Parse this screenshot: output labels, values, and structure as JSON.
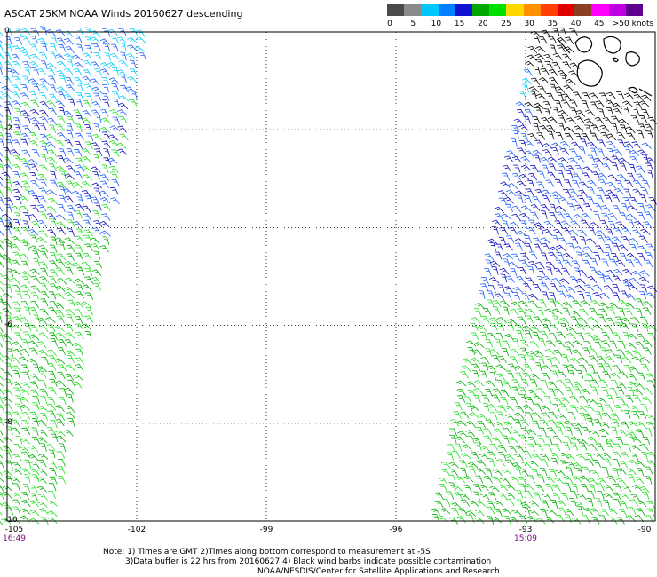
{
  "title": "ASCAT 25KM NOAA Winds 20160627 descending",
  "legend": {
    "colors": [
      "#4a4a4a",
      "#8a8a8a",
      "#00c8ff",
      "#0080ff",
      "#1010d0",
      "#00a800",
      "#00e000",
      "#ffd800",
      "#ff9000",
      "#ff4000",
      "#e00000",
      "#8a4020",
      "#ff00ff",
      "#c000e0",
      "#600090"
    ],
    "labels": [
      "0",
      "5",
      "10",
      "15",
      "20",
      "25",
      "30",
      "35",
      "40",
      "45",
      ">50 knots"
    ]
  },
  "map": {
    "lon_range": [
      -105,
      -90
    ],
    "lat_range": [
      -10,
      0
    ],
    "lat_labels": [
      "0",
      "-2",
      "-4",
      "-6",
      "-8",
      "-10"
    ],
    "lon_labels": [
      "-105",
      "-102",
      "-99",
      "-96",
      "-93",
      "-90"
    ],
    "times": [
      {
        "label": "16:49",
        "lon": -105
      },
      {
        "label": "15:09",
        "lon": -93
      }
    ],
    "coastline_note": "Galapagos Islands top-right",
    "wind_colors": {
      "contaminated": "#000000",
      "light": "#00d0ff",
      "moderate": "#2060ff",
      "strong": "#1010c0",
      "green": "#00b000",
      "lightgreen": "#20e020"
    }
  },
  "notes": [
    "Note: 1) Times are GMT 2)Times along bottom correspond to measurement at -5S",
    "3)Data buffer is 22 hrs from 20160627 4) Black wind barbs indicate possible contamination",
    "NOAA/NESDIS/Center for Satellite Applications and Research"
  ]
}
